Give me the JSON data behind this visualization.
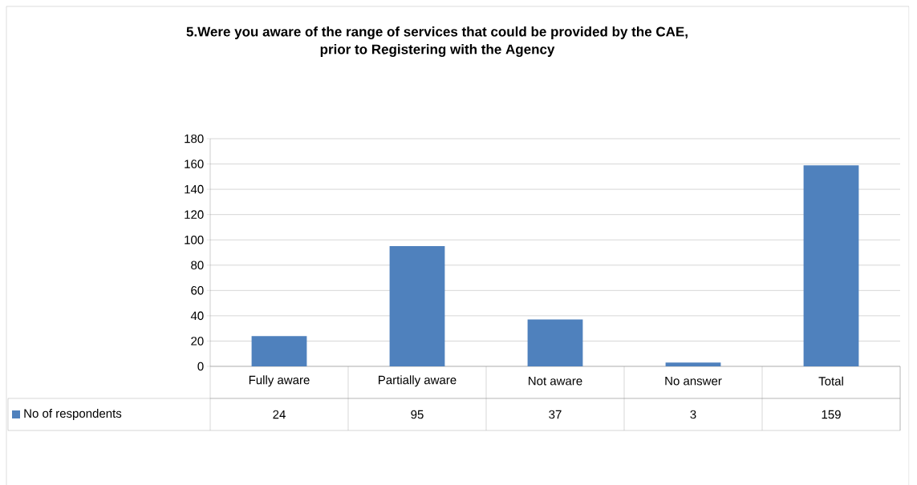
{
  "chart_data": {
    "type": "bar",
    "title": "5.Were you aware of the range of services that could be provided by the CAE,\nprior to Registering with the Agency",
    "categories": [
      "Fully aware",
      "Partially aware",
      "Not aware",
      "No answer",
      "Total"
    ],
    "series": [
      {
        "name": "No of respondents",
        "color": "#4f81bd",
        "values": [
          24,
          95,
          37,
          3,
          159
        ]
      }
    ],
    "ylim": [
      0,
      180
    ],
    "yticks": [
      0,
      20,
      40,
      60,
      80,
      100,
      120,
      140,
      160,
      180
    ],
    "grid": "y",
    "legend": "bottom left",
    "data_labels": true
  }
}
